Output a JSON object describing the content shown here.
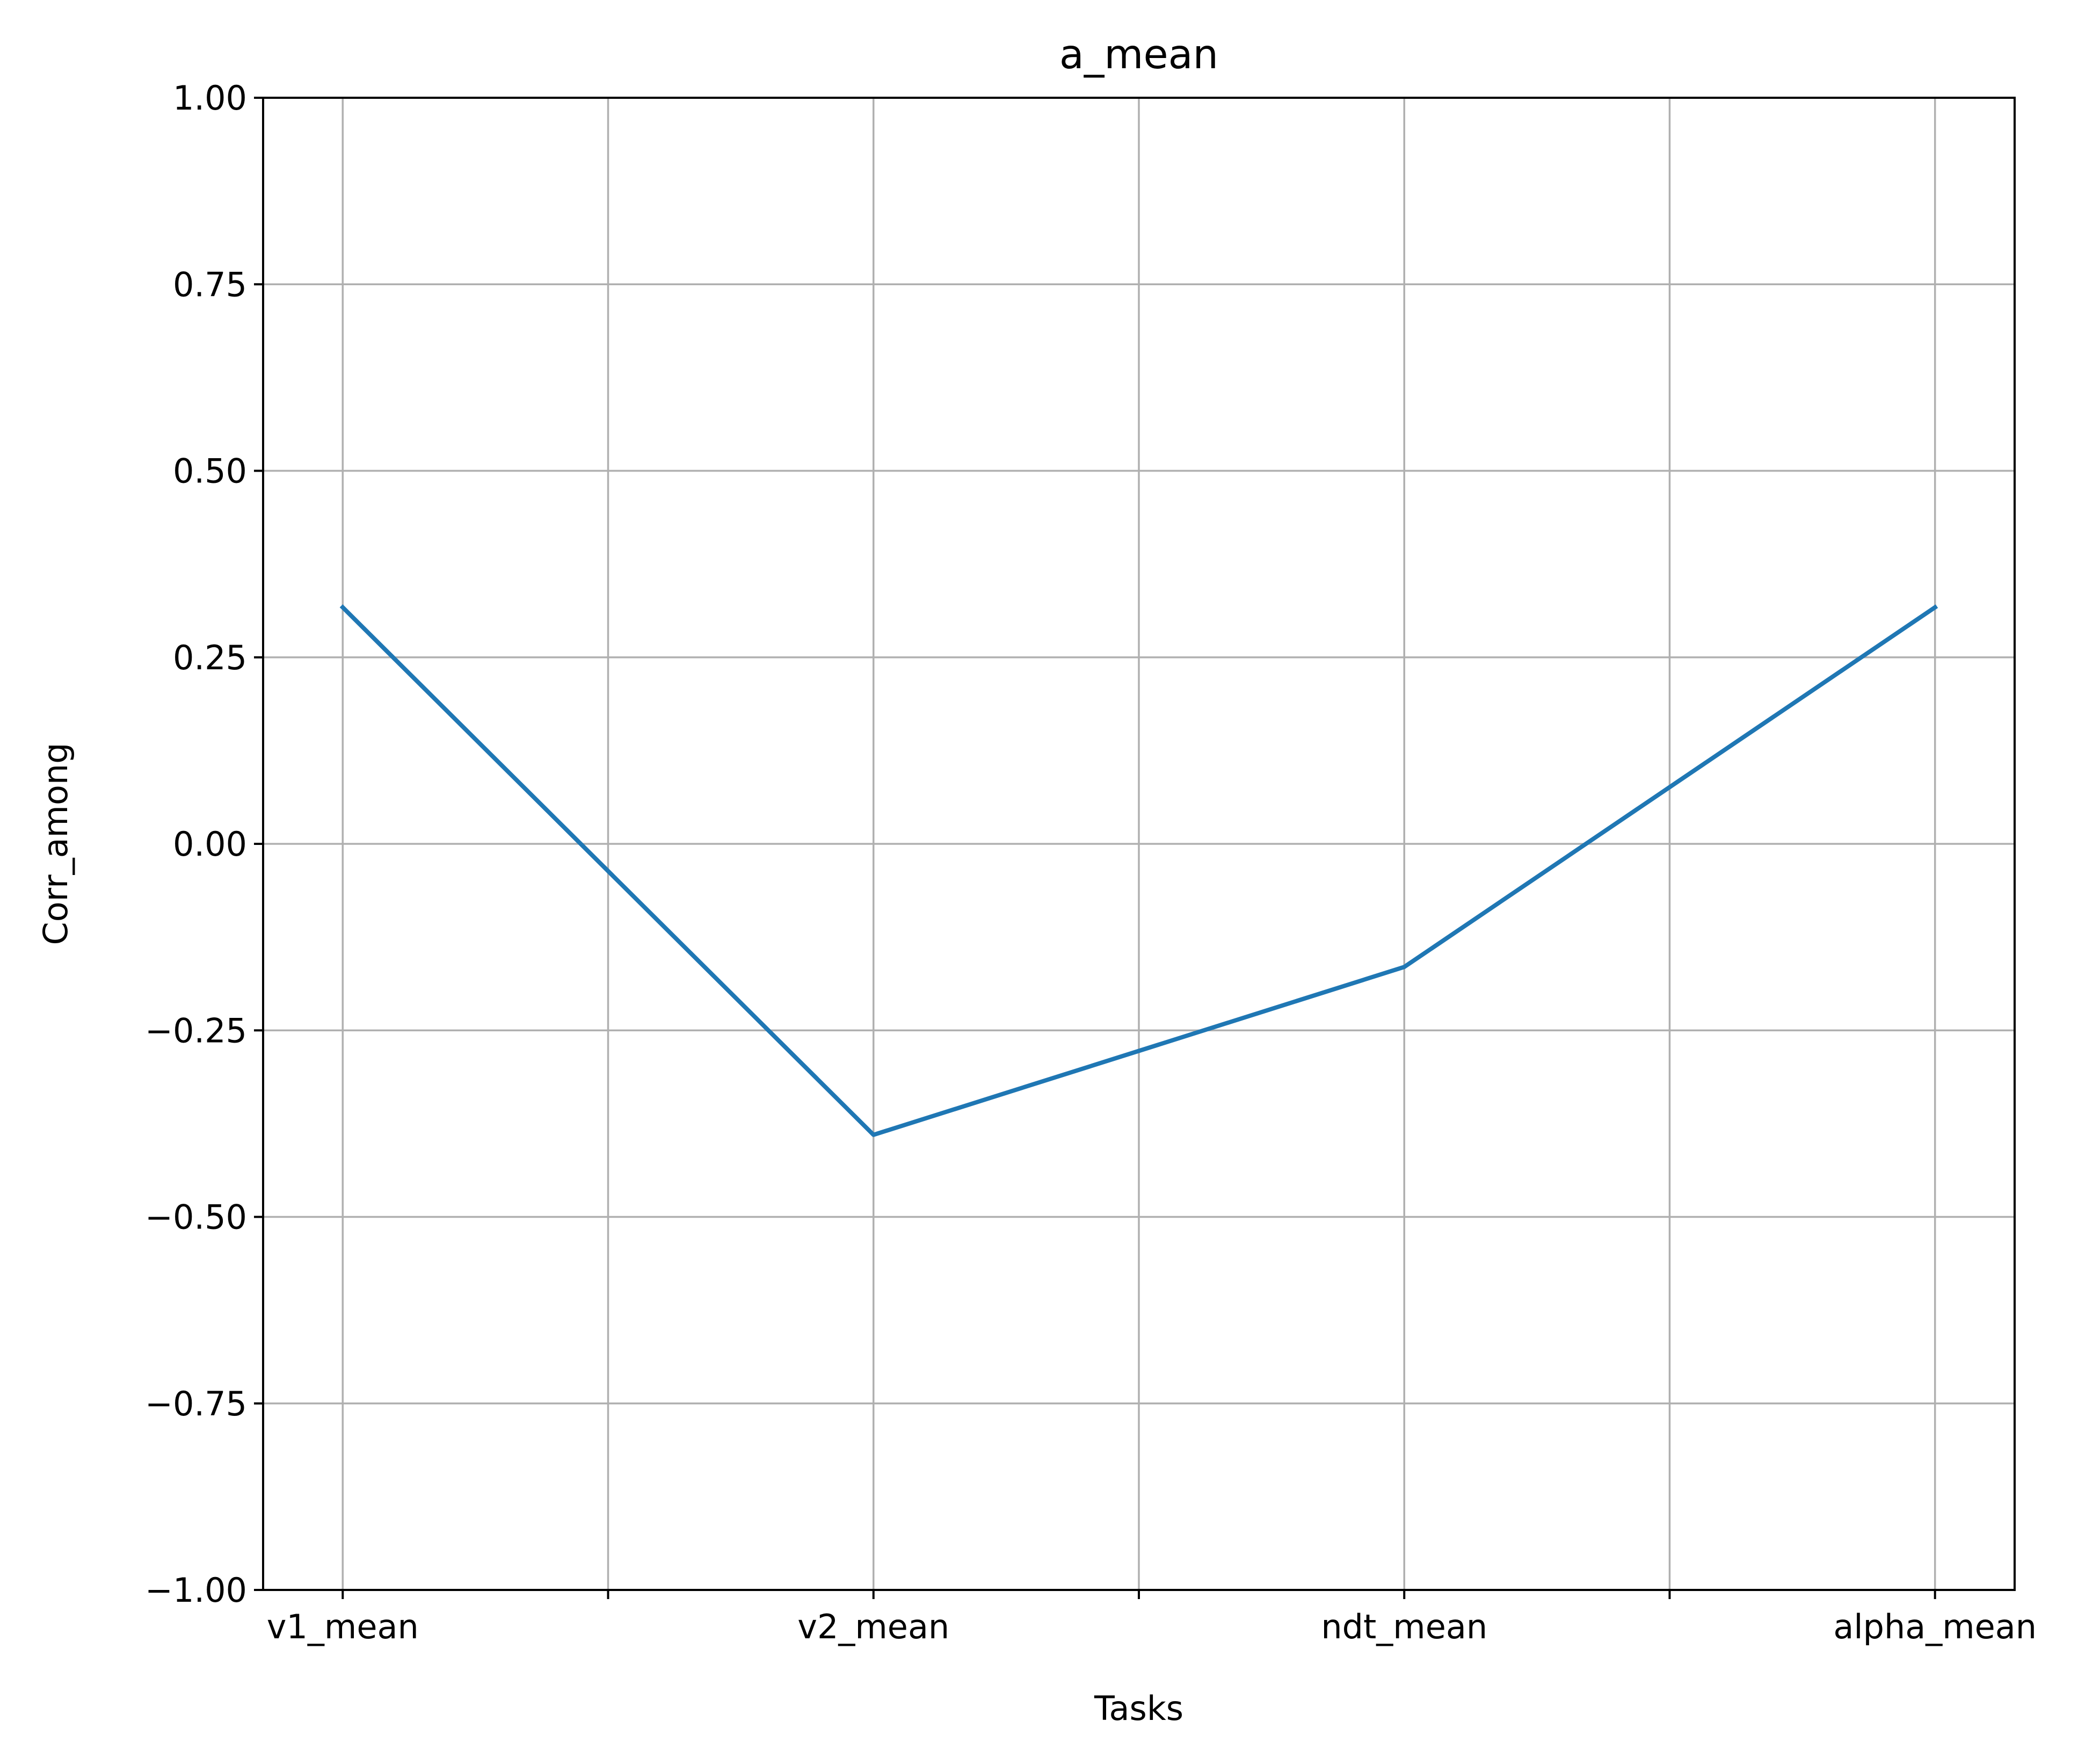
{
  "chart_data": {
    "type": "line",
    "title": "a_mean",
    "xlabel": "Tasks",
    "ylabel": "Corr_among",
    "x": [
      "v1_mean",
      "v2_mean",
      "ndt_mean",
      "alpha_mean"
    ],
    "series": [
      {
        "values": [
          0.317,
          -0.39,
          -0.165,
          0.317
        ],
        "color": "#1f77b4"
      }
    ],
    "ylim": [
      -1.0,
      1.0
    ],
    "xlim": [
      -0.15,
      3.15
    ],
    "yticks": [
      -1.0,
      -0.75,
      -0.5,
      -0.25,
      0.0,
      0.25,
      0.5,
      0.75,
      1.0
    ],
    "ytick_labels": [
      "−1.00",
      "−0.75",
      "−0.50",
      "−0.25",
      "0.00",
      "0.25",
      "0.50",
      "0.75",
      "1.00"
    ],
    "xticks": [
      0,
      0.5,
      1,
      1.5,
      2,
      2.5,
      3
    ],
    "grid": true,
    "grid_color": "#b0b0b0"
  }
}
